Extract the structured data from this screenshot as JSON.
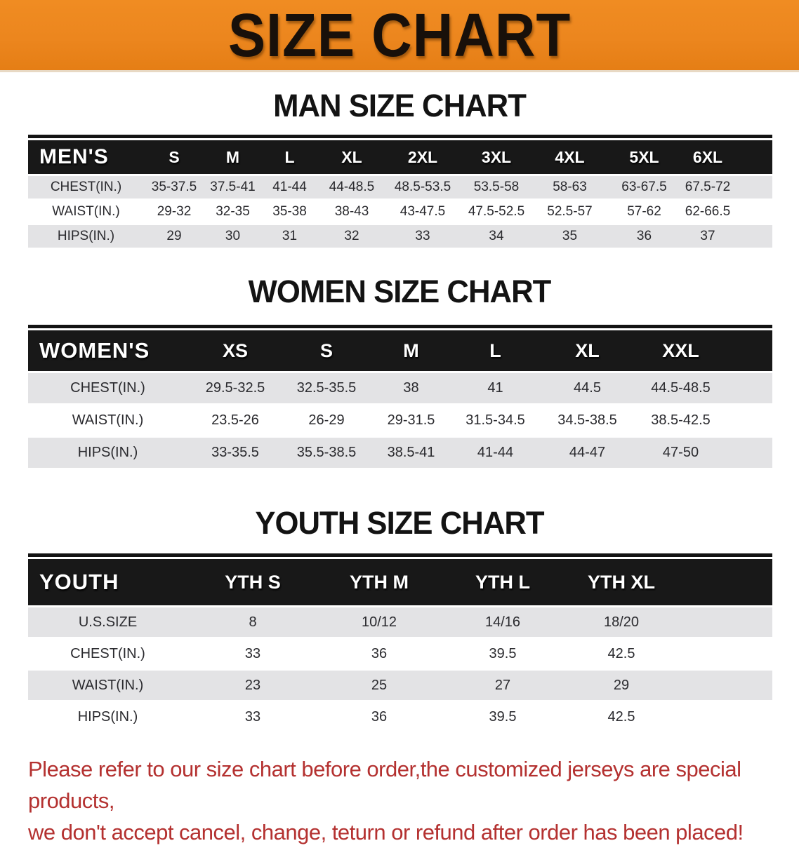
{
  "banner": {
    "title": "SIZE CHART",
    "bg_color": "#ec861e",
    "text_color": "#18100a"
  },
  "sections": [
    {
      "id": "men",
      "title": "MAN SIZE CHART",
      "table": {
        "corner_label": "MEN'S",
        "columns": [
          "S",
          "M",
          "L",
          "XL",
          "2XL",
          "3XL",
          "4XL",
          "5XL",
          "6XL"
        ],
        "rows": [
          {
            "label": "CHEST(IN.)",
            "values": [
              "35-37.5",
              "37.5-41",
              "41-44",
              "44-48.5",
              "48.5-53.5",
              "53.5-58",
              "58-63",
              "63-67.5",
              "67.5-72"
            ]
          },
          {
            "label": "WAIST(IN.)",
            "values": [
              "29-32",
              "32-35",
              "35-38",
              "38-43",
              "43-47.5",
              "47.5-52.5",
              "52.5-57",
              "57-62",
              "62-66.5"
            ]
          },
          {
            "label": "HIPS(IN.)",
            "values": [
              "29",
              "30",
              "31",
              "32",
              "33",
              "34",
              "35",
              "36",
              "37"
            ]
          }
        ]
      }
    },
    {
      "id": "women",
      "title": "WOMEN SIZE CHART",
      "table": {
        "corner_label": "WOMEN'S",
        "columns": [
          "XS",
          "S",
          "M",
          "L",
          "XL",
          "XXL"
        ],
        "rows": [
          {
            "label": "CHEST(IN.)",
            "values": [
              "29.5-32.5",
              "32.5-35.5",
              "38",
              "41",
              "44.5",
              "44.5-48.5"
            ]
          },
          {
            "label": "WAIST(IN.)",
            "values": [
              "23.5-26",
              "26-29",
              "29-31.5",
              "31.5-34.5",
              "34.5-38.5",
              "38.5-42.5"
            ]
          },
          {
            "label": "HIPS(IN.)",
            "values": [
              "33-35.5",
              "35.5-38.5",
              "38.5-41",
              "41-44",
              "44-47",
              "47-50"
            ]
          }
        ]
      }
    },
    {
      "id": "youth",
      "title": "YOUTH SIZE CHART",
      "table": {
        "corner_label": "YOUTH",
        "columns": [
          "YTH S",
          "YTH M",
          "YTH L",
          "YTH XL"
        ],
        "rows": [
          {
            "label": "U.S.SIZE",
            "values": [
              "8",
              "10/12",
              "14/16",
              "18/20"
            ]
          },
          {
            "label": "CHEST(IN.)",
            "values": [
              "33",
              "36",
              "39.5",
              "42.5"
            ]
          },
          {
            "label": "WAIST(IN.)",
            "values": [
              "23",
              "25",
              "27",
              "29"
            ]
          },
          {
            "label": "HIPS(IN.)",
            "values": [
              "33",
              "36",
              "39.5",
              "42.5"
            ]
          }
        ]
      }
    }
  ],
  "footer": {
    "color": "#b43130",
    "lines": [
      "Please refer to our size chart before order,the customized jerseys are special products,",
      "we don't accept cancel, change, teturn or refund after order has been placed!"
    ]
  }
}
